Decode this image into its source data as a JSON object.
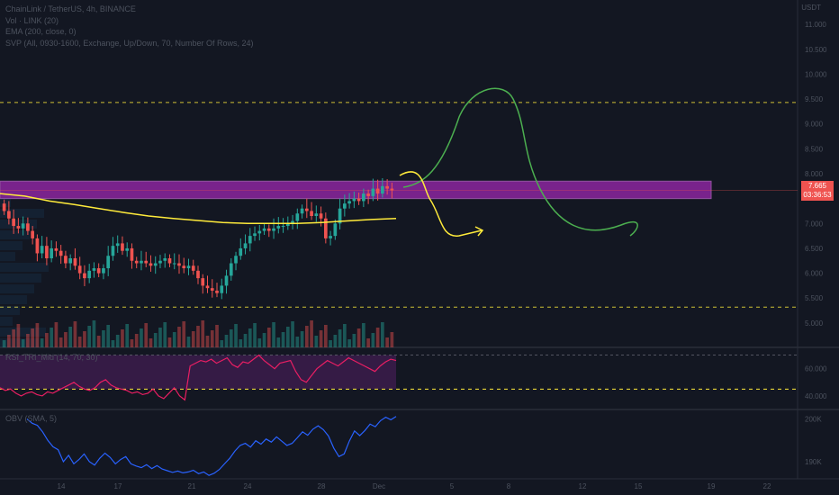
{
  "legend": {
    "symbol": "ChainLink / TetherUS, 4h, BINANCE",
    "vol": "Vol · LINK (20)",
    "ema": "EMA (200, close, 0)",
    "svp": "SVP (All, 0930-1600, Exchange, Up/Down, 70, Number Of Rows, 24)"
  },
  "axis_currency": "USDT",
  "price_axis_labels": [
    "11.000",
    "10.500",
    "10.000",
    "9.500",
    "9.000",
    "8.500",
    "8.000",
    "7.000",
    "6.500",
    "6.000",
    "5.500",
    "5.000"
  ],
  "last_price": "7.665",
  "countdown": "03:36:53",
  "rsi_label": "RSI_TRI_Mid (14, 70, 30)",
  "rsi_axis_labels": [
    "60.000",
    "40.000"
  ],
  "obv_label": "OBV (SMA, 5)",
  "obv_axis_labels": [
    "200K",
    "190K"
  ],
  "x_ticks": [
    "14",
    "17",
    "21",
    "24",
    "28",
    "Dec",
    "5",
    "8",
    "12",
    "15",
    "19",
    "22"
  ],
  "colors": {
    "background": "#131722",
    "candle_up": "#26a69a",
    "candle_down": "#ef5350",
    "ema": "#ffeb3b",
    "zone": "#9c27b0",
    "rsi": "#e91e63",
    "obv": "#2962ff",
    "dashed_level": "#ffeb3b",
    "drawing_green": "#4caf50",
    "drawing_yellow": "#ffeb3b"
  },
  "chart_data": [
    {
      "type": "candlestick",
      "title": "ChainLink / TetherUS, 4h, BINANCE",
      "y_unit": "USDT",
      "ylim": [
        4.6,
        11.4
      ],
      "close_series": [
        7.25,
        7.1,
        6.95,
        6.9,
        7.0,
        6.85,
        6.7,
        6.4,
        6.55,
        6.3,
        6.5,
        6.45,
        6.35,
        6.2,
        6.3,
        6.15,
        6.0,
        5.9,
        6.05,
        6.1,
        6.0,
        6.1,
        6.35,
        6.55,
        6.6,
        6.45,
        6.5,
        6.25,
        6.2,
        6.25,
        6.2,
        6.15,
        6.2,
        6.25,
        6.3,
        6.2,
        6.2,
        6.15,
        6.1,
        6.15,
        6.05,
        5.9,
        5.75,
        5.7,
        5.65,
        5.6,
        5.75,
        5.95,
        6.2,
        6.35,
        6.5,
        6.6,
        6.75,
        6.8,
        6.85,
        6.9,
        6.85,
        6.9,
        6.95,
        6.95,
        7.0,
        7.05,
        7.2,
        7.3,
        7.25,
        7.15,
        7.2,
        7.1,
        6.7,
        6.75,
        7.0,
        7.3,
        7.4,
        7.45,
        7.5,
        7.45,
        7.6,
        7.55,
        7.7,
        7.6,
        7.75,
        7.7,
        7.665
      ],
      "ema": [
        7.6,
        7.55,
        7.45,
        7.38,
        7.3,
        7.22,
        7.15,
        7.1,
        7.06,
        7.02,
        7.0,
        7.0,
        7.0,
        7.02,
        7.05,
        7.08,
        7.1
      ],
      "levels": [
        {
          "value": 9.43,
          "style": "dashed"
        },
        {
          "value": 5.32,
          "style": "dashed"
        }
      ],
      "zone": {
        "from": 7.5,
        "to": 7.85
      },
      "last_price": 7.665
    },
    {
      "type": "line",
      "title": "RSI_TRI_Mid (14, 70, 30)",
      "ylim": [
        30,
        75
      ],
      "levels": [
        70,
        45
      ],
      "values": [
        46,
        44,
        45,
        42,
        40,
        42,
        43,
        41,
        40,
        43,
        42,
        44,
        46,
        48,
        50,
        47,
        45,
        44,
        46,
        50,
        52,
        48,
        46,
        45,
        44,
        42,
        43,
        41,
        42,
        45,
        40,
        38,
        42,
        46,
        40,
        37,
        62,
        64,
        66,
        65,
        67,
        64,
        66,
        68,
        63,
        61,
        65,
        64,
        67,
        70,
        66,
        63,
        60,
        64,
        65,
        66,
        58,
        52,
        50,
        55,
        60,
        63,
        66,
        64,
        62,
        65,
        68,
        66,
        64,
        62,
        60,
        58,
        62,
        65,
        67,
        66
      ]
    },
    {
      "type": "line",
      "title": "OBV (SMA, 5)",
      "ylim": [
        186,
        202
      ],
      "values": [
        200,
        199,
        198.5,
        197,
        195,
        193.5,
        192.8,
        190,
        191.5,
        189.5,
        190.5,
        191.8,
        190,
        189.2,
        190.8,
        192,
        191,
        189.5,
        190.5,
        191.2,
        189.5,
        189,
        188.6,
        189.3,
        188.4,
        189.1,
        188.3,
        187.9,
        187.5,
        187.8,
        187.4,
        187.6,
        188.0,
        187.2,
        187.6,
        186.8,
        187.3,
        188.2,
        189.5,
        190.8,
        192.5,
        193.8,
        194.3,
        193.4,
        194.9,
        194.1,
        195.3,
        194.6,
        195.8,
        194.8,
        193.8,
        194.3,
        195.6,
        197.0,
        196.2,
        197.6,
        198.4,
        197.5,
        196.0,
        193.2,
        191.2,
        191.8,
        194.8,
        197.2,
        196.1,
        197.3,
        198.8,
        198.2,
        199.6,
        200.4,
        199.8,
        200.6
      ]
    }
  ]
}
